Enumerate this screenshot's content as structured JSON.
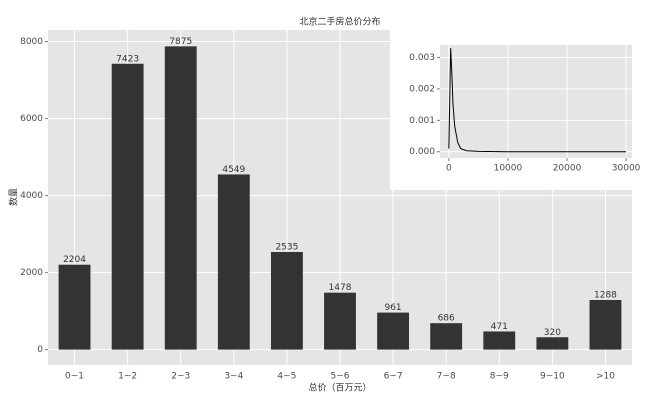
{
  "chart_data": [
    {
      "type": "bar",
      "title": "北京二手房总价分布",
      "x_label": "总价（百万元）",
      "y_label": "数量",
      "categories": [
        "0~1",
        "1~2",
        "2~3",
        "3~4",
        "4~5",
        "5~6",
        "6~7",
        "7~8",
        "8~9",
        "9~10",
        ">10"
      ],
      "values": [
        2204,
        7423,
        7875,
        4549,
        2535,
        1478,
        961,
        686,
        471,
        320,
        1288
      ],
      "color": "#333333",
      "ylim": [
        -400,
        8300
      ],
      "yticks": [
        0,
        2000,
        4000,
        6000,
        8000
      ],
      "grid": true
    },
    {
      "type": "line",
      "x": [
        0,
        300,
        500,
        700,
        1000,
        1500,
        2000,
        3000,
        5000,
        10000,
        20000,
        30000
      ],
      "values": [
        0.0001,
        0.0033,
        0.0025,
        0.0015,
        0.0008,
        0.0003,
        0.0001,
        3e-05,
        1e-05,
        0,
        0,
        0
      ],
      "color": "#000000",
      "xlim": [
        -1500,
        31000
      ],
      "ylim": [
        -0.0002,
        0.0034
      ],
      "xticks": [
        0,
        10000,
        20000,
        30000
      ],
      "yticks": [
        {
          "value": 0,
          "label": "0.000"
        },
        {
          "value": 0.001,
          "label": "0.001"
        },
        {
          "value": 0.002,
          "label": "0.002"
        },
        {
          "value": 0.003,
          "label": "0.003"
        }
      ],
      "grid": true
    }
  ]
}
